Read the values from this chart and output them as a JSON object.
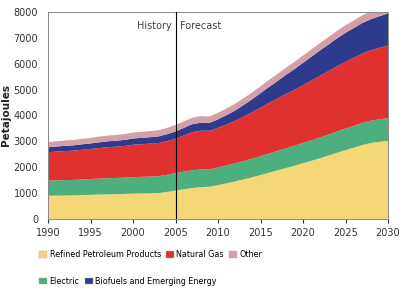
{
  "years": [
    1990,
    1991,
    1992,
    1993,
    1994,
    1995,
    1996,
    1997,
    1998,
    1999,
    2000,
    2001,
    2002,
    2003,
    2004,
    2005,
    2006,
    2007,
    2008,
    2009,
    2010,
    2011,
    2012,
    2013,
    2014,
    2015,
    2016,
    2017,
    2018,
    2019,
    2020,
    2021,
    2022,
    2023,
    2024,
    2025,
    2026,
    2027,
    2028,
    2029,
    2030
  ],
  "refined_petroleum": [
    900,
    905,
    910,
    915,
    925,
    935,
    945,
    955,
    960,
    970,
    980,
    985,
    990,
    1000,
    1050,
    1100,
    1150,
    1200,
    1230,
    1250,
    1310,
    1380,
    1450,
    1530,
    1610,
    1700,
    1790,
    1880,
    1970,
    2060,
    2160,
    2250,
    2350,
    2450,
    2560,
    2660,
    2760,
    2860,
    2940,
    2980,
    3020
  ],
  "electric": [
    580,
    590,
    595,
    595,
    600,
    610,
    615,
    620,
    625,
    630,
    640,
    645,
    650,
    655,
    660,
    670,
    680,
    685,
    680,
    670,
    680,
    690,
    700,
    710,
    720,
    730,
    740,
    750,
    760,
    770,
    780,
    790,
    800,
    810,
    820,
    830,
    840,
    850,
    860,
    870,
    880
  ],
  "natural_gas": [
    1100,
    1110,
    1120,
    1130,
    1150,
    1160,
    1180,
    1200,
    1210,
    1220,
    1250,
    1260,
    1270,
    1280,
    1300,
    1330,
    1400,
    1470,
    1500,
    1490,
    1530,
    1580,
    1640,
    1710,
    1790,
    1870,
    1950,
    2020,
    2100,
    2160,
    2230,
    2310,
    2380,
    2450,
    2520,
    2580,
    2630,
    2680,
    2720,
    2760,
    2800
  ],
  "biofuels": [
    190,
    195,
    200,
    205,
    210,
    215,
    220,
    225,
    230,
    235,
    240,
    245,
    250,
    255,
    265,
    280,
    295,
    310,
    310,
    300,
    330,
    360,
    400,
    450,
    500,
    560,
    620,
    680,
    740,
    800,
    860,
    920,
    980,
    1030,
    1080,
    1120,
    1150,
    1180,
    1200,
    1220,
    1240
  ],
  "other": [
    200,
    203,
    207,
    210,
    213,
    215,
    220,
    222,
    225,
    227,
    230,
    233,
    237,
    240,
    245,
    250,
    250,
    252,
    255,
    250,
    255,
    258,
    260,
    262,
    265,
    268,
    270,
    273,
    275,
    278,
    280,
    283,
    285,
    288,
    290,
    293,
    295,
    298,
    300,
    303,
    305
  ],
  "colors": {
    "refined_petroleum": "#F5D778",
    "electric": "#4CAF7D",
    "natural_gas": "#E03030",
    "biofuels": "#2E3A8C",
    "other": "#D4A0A8"
  },
  "ylabel": "Petajoules",
  "ylim": [
    0,
    8000
  ],
  "xlim": [
    1990,
    2030
  ],
  "yticks": [
    0,
    1000,
    2000,
    3000,
    4000,
    5000,
    6000,
    7000,
    8000
  ],
  "xticks": [
    1990,
    1995,
    2000,
    2005,
    2010,
    2015,
    2020,
    2025,
    2030
  ],
  "history_year": 2005,
  "history_label": "History",
  "forecast_label": "Forecast",
  "legend_row1": [
    {
      "label": "Refined Petroleum Products",
      "color": "#F5D778"
    },
    {
      "label": "Natural Gas",
      "color": "#E03030"
    },
    {
      "label": "Other",
      "color": "#D4A0A8"
    }
  ],
  "legend_row2": [
    {
      "label": "Electric",
      "color": "#4CAF7D"
    },
    {
      "label": "Biofuels and Emerging Energy",
      "color": "#2E3A8C"
    }
  ]
}
